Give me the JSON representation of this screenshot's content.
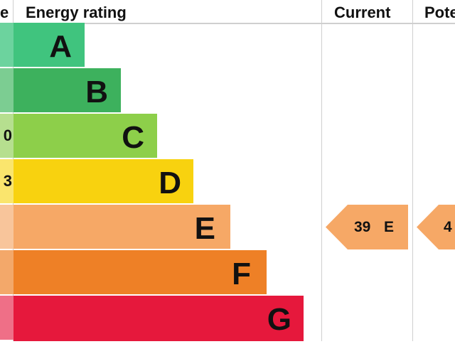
{
  "header": {
    "score_fragment": "e",
    "energy_rating": "Energy rating",
    "current": "Current",
    "potential": "Pote"
  },
  "score_fragments": [
    "",
    "",
    "0",
    "3",
    "",
    "",
    ""
  ],
  "bands": [
    {
      "letter": "A",
      "color": "#40c47e",
      "score_color": "#6cd39e"
    },
    {
      "letter": "B",
      "color": "#3db15d",
      "score_color": "#7ccd92"
    },
    {
      "letter": "C",
      "color": "#8dcf4a",
      "score_color": "#b6df8f"
    },
    {
      "letter": "D",
      "color": "#f8d20f",
      "score_color": "#fae56d"
    },
    {
      "letter": "E",
      "color": "#f6a866",
      "score_color": "#f8c59b"
    },
    {
      "letter": "F",
      "color": "#ee8026",
      "score_color": "#f3a86a"
    },
    {
      "letter": "G",
      "color": "#e6183c",
      "score_color": "#ef6f87"
    }
  ],
  "current": {
    "value": "39",
    "letter": "E",
    "color": "#f6a866"
  },
  "potential": {
    "value": "4",
    "color": "#f6a866"
  }
}
